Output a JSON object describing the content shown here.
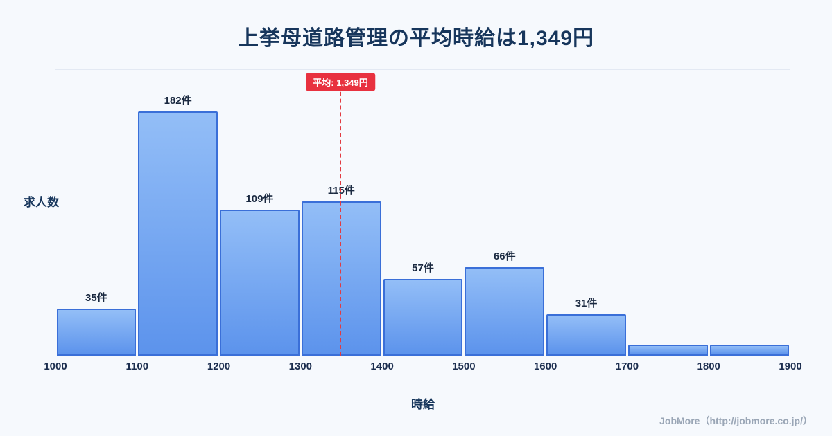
{
  "page": {
    "title": "上挙母道路管理の平均時給は1,349円",
    "footer": "JobMore（http://jobmore.co.jp/）"
  },
  "chart_data": {
    "type": "bar",
    "title": "上挙母道路管理の平均時給は1,349円",
    "xlabel": "時給",
    "ylabel": "求人数",
    "x_ticks": [
      "1000",
      "1100",
      "1200",
      "1300",
      "1400",
      "1500",
      "1600",
      "1700",
      "1800",
      "1900"
    ],
    "bin_edges": [
      1000,
      1100,
      1200,
      1300,
      1400,
      1500,
      1600,
      1700,
      1800,
      1900
    ],
    "values": [
      35,
      182,
      109,
      115,
      57,
      66,
      31,
      8,
      8
    ],
    "bar_labels": [
      "35件",
      "182件",
      "109件",
      "115件",
      "57件",
      "66件",
      "31件",
      "",
      ""
    ],
    "average": 1349,
    "average_label": "平均: 1,349円",
    "x_range": [
      1000,
      1900
    ],
    "grid": "off",
    "legend": "none",
    "colors": {
      "bar_fill_top": "#93bef7",
      "bar_fill_bottom": "#5c93ec",
      "bar_border": "#3a6fd8",
      "average_line": "#e23b41",
      "average_badge": "#e8313f",
      "title_text": "#17365c",
      "background": "#f6f9fd",
      "footer_text": "#9aa6b6"
    }
  }
}
